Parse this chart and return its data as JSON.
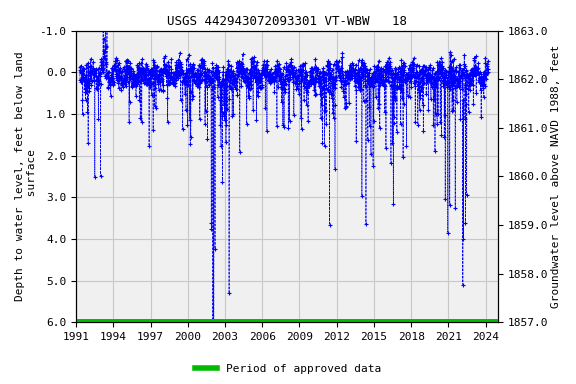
{
  "title": "USGS 442943072093301 VT-WBW   18",
  "ylabel_left": "Depth to water level, feet below land\n surface",
  "ylabel_right": "Groundwater level above NAVD 1988, feet",
  "ylim_left": [
    6.0,
    -1.0
  ],
  "ylim_right": [
    1857.0,
    1863.0
  ],
  "xlim": [
    1991.0,
    2025.0
  ],
  "yticks_left": [
    -1.0,
    0.0,
    1.0,
    2.0,
    3.0,
    4.0,
    5.0,
    6.0
  ],
  "yticks_right": [
    1857.0,
    1858.0,
    1859.0,
    1860.0,
    1861.0,
    1862.0,
    1863.0
  ],
  "xticks": [
    1991,
    1994,
    1997,
    2000,
    2003,
    2006,
    2009,
    2012,
    2015,
    2018,
    2021,
    2024
  ],
  "line_color": "#0000ff",
  "marker": "+",
  "linestyle": "--",
  "linewidth": 0.5,
  "markersize": 3.0,
  "green_bar_y": 6.0,
  "green_bar_color": "#00bb00",
  "green_bar_linewidth": 5,
  "legend_label": "Period of approved data",
  "background_color": "#ffffff",
  "plot_bg_color": "#f0f0f0",
  "grid_color": "#c8c8c8",
  "title_fontsize": 9,
  "axis_label_fontsize": 8,
  "tick_fontsize": 8
}
